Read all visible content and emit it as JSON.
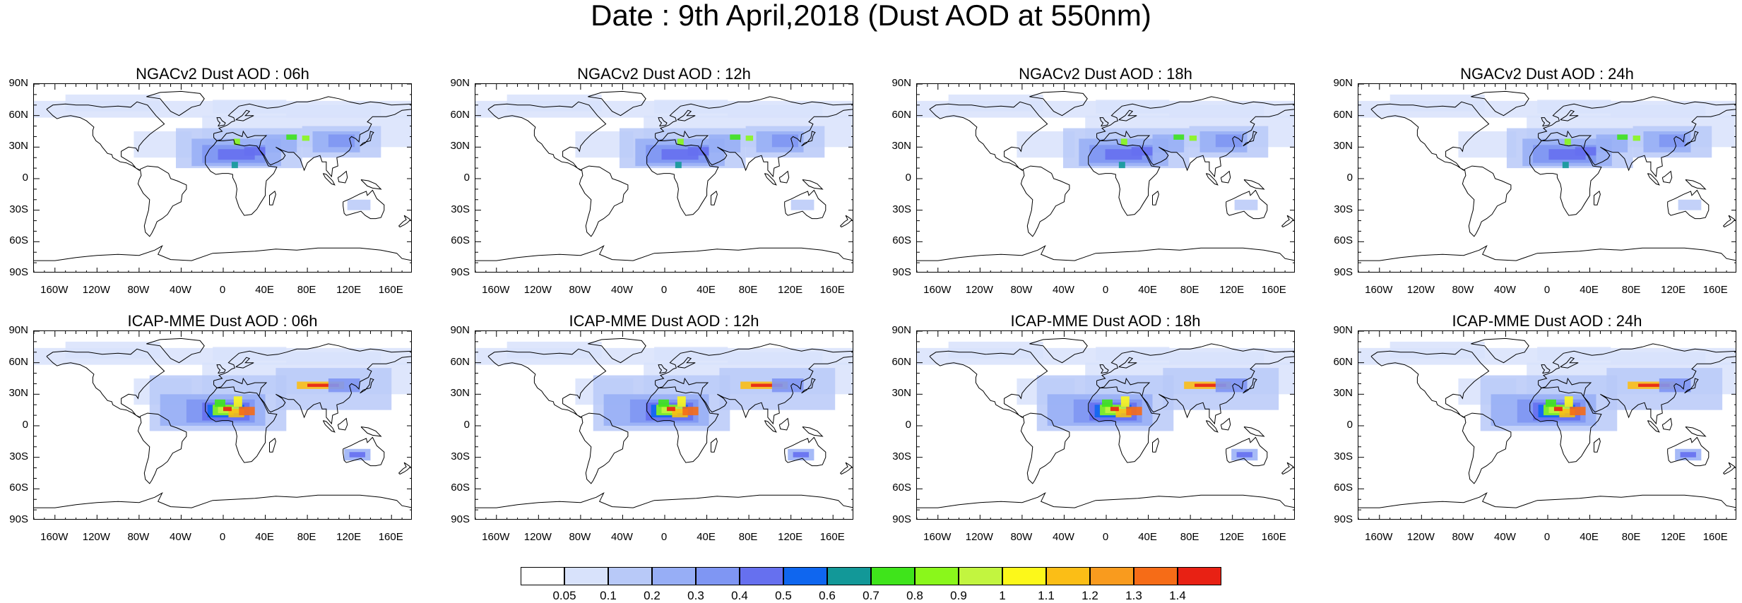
{
  "title": "Date : 9th April,2018 (Dust AOD at 550nm)",
  "panels": [
    {
      "title": "NGACv2 Dust AOD : 06h",
      "model": "NGAC",
      "hour": 6
    },
    {
      "title": "NGACv2 Dust AOD : 12h",
      "model": "NGAC",
      "hour": 12
    },
    {
      "title": "NGACv2 Dust AOD : 18h",
      "model": "NGAC",
      "hour": 18
    },
    {
      "title": "NGACv2 Dust AOD : 24h",
      "model": "NGAC",
      "hour": 24
    },
    {
      "title": "ICAP-MME Dust AOD : 06h",
      "model": "ICAP",
      "hour": 6
    },
    {
      "title": "ICAP-MME Dust AOD : 12h",
      "model": "ICAP",
      "hour": 12
    },
    {
      "title": "ICAP-MME Dust AOD : 18h",
      "model": "ICAP",
      "hour": 18
    },
    {
      "title": "ICAP-MME Dust AOD : 24h",
      "model": "ICAP",
      "hour": 24
    }
  ],
  "lat_ticks": [
    "90N",
    "60N",
    "30N",
    "0",
    "30S",
    "60S",
    "90S"
  ],
  "lon_ticks": [
    "160W",
    "120W",
    "80W",
    "40W",
    "0",
    "40E",
    "80E",
    "120E",
    "160E"
  ],
  "colorbar": {
    "labels": [
      "0.05",
      "0.1",
      "0.2",
      "0.3",
      "0.4",
      "0.5",
      "0.6",
      "0.7",
      "0.8",
      "0.9",
      "1",
      "1.1",
      "1.2",
      "1.3",
      "1.4"
    ],
    "colors": [
      "#ffffff",
      "#d8e2fb",
      "#b8c9f8",
      "#97aef6",
      "#7f96f3",
      "#6670ef",
      "#0f66ef",
      "#129898",
      "#3fe41b",
      "#8af71b",
      "#c2f53f",
      "#fcf81a",
      "#fbbe16",
      "#f99b1e",
      "#f66c17",
      "#e82114"
    ]
  }
}
